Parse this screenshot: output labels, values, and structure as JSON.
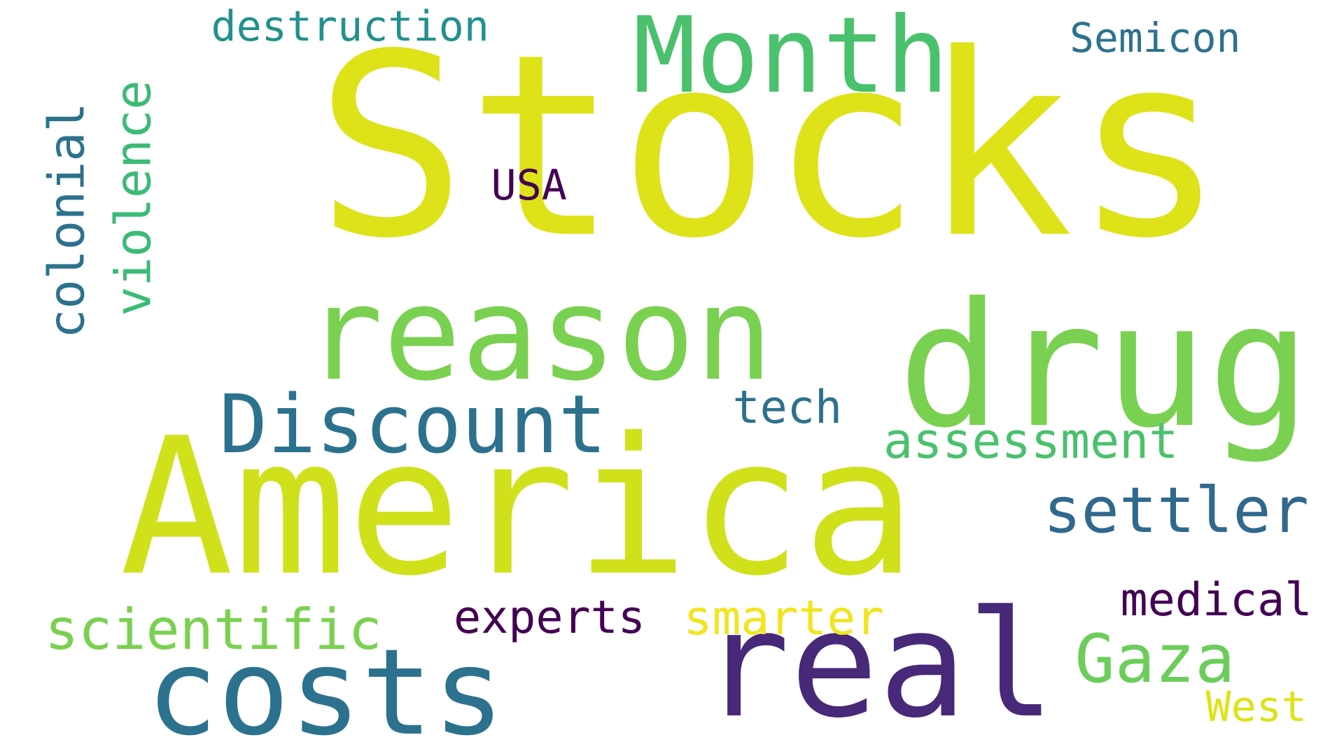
{
  "words": [
    {
      "text": "Stocks",
      "color": "#dde318"
    },
    {
      "text": "America",
      "color": "#d0e11c"
    },
    {
      "text": "real",
      "color": "#482878"
    },
    {
      "text": "drug",
      "color": "#7ad151"
    },
    {
      "text": "reason",
      "color": "#7ad151"
    },
    {
      "text": "Month",
      "color": "#4ac16d"
    },
    {
      "text": "costs",
      "color": "#2c728e"
    },
    {
      "text": "Discount",
      "color": "#2c728e"
    },
    {
      "text": "colonial",
      "color": "#2c728e"
    },
    {
      "text": "violence",
      "color": "#3bbb75"
    },
    {
      "text": "settler",
      "color": "#31688e"
    },
    {
      "text": "Gaza",
      "color": "#6ccd5a"
    },
    {
      "text": "scientific",
      "color": "#7ad151"
    },
    {
      "text": "assessment",
      "color": "#4ac16d"
    },
    {
      "text": "destruction",
      "color": "#21918c"
    },
    {
      "text": "Semicon",
      "color": "#2c728e"
    },
    {
      "text": "tech",
      "color": "#2c728e"
    },
    {
      "text": "experts",
      "color": "#440154"
    },
    {
      "text": "smarter",
      "color": "#f1e51d"
    },
    {
      "text": "medical",
      "color": "#440154"
    },
    {
      "text": "West",
      "color": "#dde318"
    },
    {
      "text": "USA",
      "color": "#440154"
    }
  ]
}
